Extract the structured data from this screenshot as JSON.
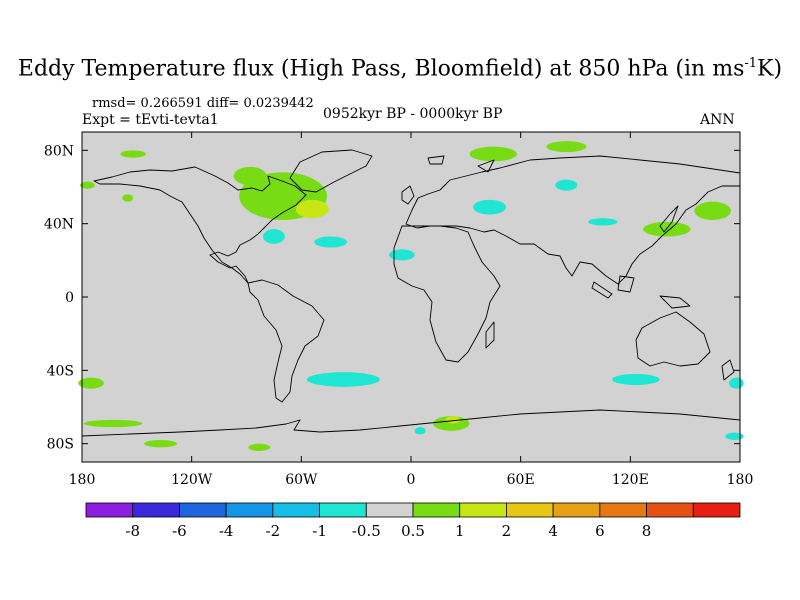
{
  "chart_data": {
    "type": "contour-map",
    "title_main": "Eddy Temperature flux (High Pass, Bloomfield) at 850 hPa (in ms",
    "title_exp": "-1",
    "title_end": "K)",
    "stats": "rmsd= 0.266591 diff= 0.0239442",
    "experiment": "Expt = tEvti-tevta1",
    "period": "0952kyr BP - 0000kyr BP",
    "season": "ANN",
    "x_range": [
      -180,
      180
    ],
    "y_range": [
      -90,
      90
    ],
    "x_ticks": [
      {
        "value": -180,
        "label": "180"
      },
      {
        "value": -120,
        "label": "120W"
      },
      {
        "value": -60,
        "label": "60W"
      },
      {
        "value": 0,
        "label": "0"
      },
      {
        "value": 60,
        "label": "60E"
      },
      {
        "value": 120,
        "label": "120E"
      },
      {
        "value": 180,
        "label": "180"
      }
    ],
    "y_ticks": [
      {
        "value": 80,
        "label": "80N"
      },
      {
        "value": 40,
        "label": "40N"
      },
      {
        "value": 0,
        "label": "0"
      },
      {
        "value": -40,
        "label": "40S"
      },
      {
        "value": -80,
        "label": "80S"
      }
    ],
    "colorbar": {
      "colors": [
        "#8c1ee0",
        "#3c28dc",
        "#1e64dc",
        "#1496e6",
        "#14bee6",
        "#1ee6d2",
        "#d2d2d2",
        "#78dc14",
        "#c8e614",
        "#e6c814",
        "#e6a014",
        "#e67814",
        "#e65014",
        "#e61e14"
      ],
      "labels": [
        "-8",
        "-6",
        "-4",
        "-2",
        "-1",
        "-0.5",
        "0.5",
        "1",
        "2",
        "4",
        "6",
        "8"
      ]
    },
    "anomaly_patches": [
      {
        "lon": -152,
        "lat": 78,
        "rlon": 7,
        "rlat": 2,
        "level": "0.5"
      },
      {
        "lon": -177,
        "lat": 61,
        "rlon": 4,
        "rlat": 2,
        "level": "0.5"
      },
      {
        "lon": -155,
        "lat": 54,
        "rlon": 3,
        "rlat": 2,
        "level": "0.5"
      },
      {
        "lon": -70,
        "lat": 55,
        "rlon": 24,
        "rlat": 13,
        "level": "0.5"
      },
      {
        "lon": -54,
        "lat": 48,
        "rlon": 9,
        "rlat": 5,
        "level": "1"
      },
      {
        "lon": -88,
        "lat": 66,
        "rlon": 9,
        "rlat": 5,
        "level": "0.5"
      },
      {
        "lon": -75,
        "lat": 33,
        "rlon": 6,
        "rlat": 4,
        "level": "-0.5"
      },
      {
        "lon": -44,
        "lat": 30,
        "rlon": 9,
        "rlat": 3,
        "level": "-0.5"
      },
      {
        "lon": -5,
        "lat": 23,
        "rlon": 7,
        "rlat": 3,
        "level": "-0.5"
      },
      {
        "lon": 45,
        "lat": 78,
        "rlon": 13,
        "rlat": 4,
        "level": "0.5"
      },
      {
        "lon": 85,
        "lat": 82,
        "rlon": 11,
        "rlat": 3,
        "level": "0.5"
      },
      {
        "lon": 85,
        "lat": 61,
        "rlon": 6,
        "rlat": 3,
        "level": "-0.5"
      },
      {
        "lon": 43,
        "lat": 49,
        "rlon": 9,
        "rlat": 4,
        "level": "-0.5"
      },
      {
        "lon": 140,
        "lat": 37,
        "rlon": 13,
        "rlat": 4,
        "level": "0.5"
      },
      {
        "lon": 165,
        "lat": 47,
        "rlon": 10,
        "rlat": 5,
        "level": "0.5"
      },
      {
        "lon": 105,
        "lat": 41,
        "rlon": 8,
        "rlat": 2,
        "level": "-0.5"
      },
      {
        "lon": -175,
        "lat": -47,
        "rlon": 7,
        "rlat": 3,
        "level": "0.5"
      },
      {
        "lon": -163,
        "lat": -69,
        "rlon": 16,
        "rlat": 2,
        "level": "0.5"
      },
      {
        "lon": -137,
        "lat": -80,
        "rlon": 9,
        "rlat": 2,
        "level": "0.5"
      },
      {
        "lon": -83,
        "lat": -82,
        "rlon": 6,
        "rlat": 2,
        "level": "0.5"
      },
      {
        "lon": -37,
        "lat": -45,
        "rlon": 20,
        "rlat": 4,
        "level": "-0.5"
      },
      {
        "lon": 22,
        "lat": -69,
        "rlon": 10,
        "rlat": 4,
        "level": "0.5"
      },
      {
        "lon": 23,
        "lat": -67,
        "rlon": 4,
        "rlat": 2,
        "level": "1"
      },
      {
        "lon": 5,
        "lat": -73,
        "rlon": 3,
        "rlat": 2,
        "level": "-0.5"
      },
      {
        "lon": 123,
        "lat": -45,
        "rlon": 13,
        "rlat": 3,
        "level": "-0.5"
      },
      {
        "lon": 178,
        "lat": -47,
        "rlon": 4,
        "rlat": 3,
        "level": "-0.5"
      },
      {
        "lon": 177,
        "lat": -76,
        "rlon": 5,
        "rlat": 2,
        "level": "-0.5"
      }
    ]
  }
}
